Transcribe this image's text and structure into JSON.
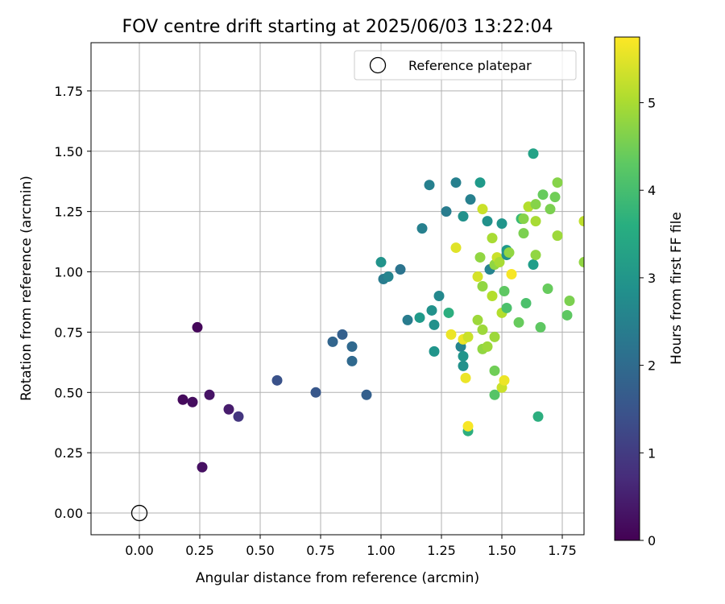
{
  "chart_data": {
    "type": "scatter",
    "title": "FOV centre drift starting at 2025/06/03 13:22:04",
    "xlabel": "Angular distance from reference (arcmin)",
    "ylabel": "Rotation from reference (arcmin)",
    "xlim": [
      -0.2,
      1.84
    ],
    "ylim": [
      -0.09,
      1.95
    ],
    "xticks": [
      "0.00",
      "0.25",
      "0.50",
      "0.75",
      "1.00",
      "1.25",
      "1.50",
      "1.75"
    ],
    "yticks": [
      "0.00",
      "0.25",
      "0.50",
      "0.75",
      "1.00",
      "1.25",
      "1.50",
      "1.75"
    ],
    "grid": true,
    "legend": {
      "position": "top-right",
      "entries": [
        "Reference platepar"
      ]
    },
    "reference": {
      "x": 0.0,
      "y": 0.0,
      "marker": "open-circle"
    },
    "colorbar": {
      "label": "Hours from first FF file",
      "colormap": "viridis",
      "range": [
        0,
        5.75
      ],
      "ticks": [
        "0",
        "1",
        "2",
        "3",
        "4",
        "5"
      ]
    },
    "points": [
      {
        "x": 0.24,
        "y": 0.77,
        "h": 0.1
      },
      {
        "x": 0.18,
        "y": 0.47,
        "h": 0.15
      },
      {
        "x": 0.22,
        "y": 0.46,
        "h": 0.2
      },
      {
        "x": 0.26,
        "y": 0.19,
        "h": 0.25
      },
      {
        "x": 0.29,
        "y": 0.49,
        "h": 0.3
      },
      {
        "x": 0.37,
        "y": 0.43,
        "h": 0.45
      },
      {
        "x": 0.41,
        "y": 0.4,
        "h": 0.9
      },
      {
        "x": 0.57,
        "y": 0.55,
        "h": 1.45
      },
      {
        "x": 0.73,
        "y": 0.5,
        "h": 1.55
      },
      {
        "x": 0.8,
        "y": 0.71,
        "h": 1.85
      },
      {
        "x": 0.84,
        "y": 0.74,
        "h": 1.75
      },
      {
        "x": 0.88,
        "y": 0.69,
        "h": 1.95
      },
      {
        "x": 0.88,
        "y": 0.63,
        "h": 1.95
      },
      {
        "x": 0.94,
        "y": 0.49,
        "h": 1.75
      },
      {
        "x": 1.0,
        "y": 1.04,
        "h": 2.95
      },
      {
        "x": 1.01,
        "y": 0.97,
        "h": 2.4
      },
      {
        "x": 1.03,
        "y": 0.98,
        "h": 2.6
      },
      {
        "x": 1.08,
        "y": 1.01,
        "h": 2.2
      },
      {
        "x": 1.11,
        "y": 0.8,
        "h": 2.4
      },
      {
        "x": 1.16,
        "y": 0.81,
        "h": 3.1
      },
      {
        "x": 1.17,
        "y": 1.18,
        "h": 2.5
      },
      {
        "x": 1.2,
        "y": 1.36,
        "h": 2.5
      },
      {
        "x": 1.21,
        "y": 0.84,
        "h": 2.9
      },
      {
        "x": 1.22,
        "y": 0.67,
        "h": 3.0
      },
      {
        "x": 1.22,
        "y": 0.78,
        "h": 2.9
      },
      {
        "x": 1.24,
        "y": 0.9,
        "h": 2.7
      },
      {
        "x": 1.27,
        "y": 1.25,
        "h": 2.4
      },
      {
        "x": 1.28,
        "y": 0.83,
        "h": 3.6
      },
      {
        "x": 1.29,
        "y": 0.74,
        "h": 5.6
      },
      {
        "x": 1.31,
        "y": 1.37,
        "h": 2.5
      },
      {
        "x": 1.31,
        "y": 1.1,
        "h": 5.5
      },
      {
        "x": 1.33,
        "y": 0.69,
        "h": 2.6
      },
      {
        "x": 1.34,
        "y": 0.65,
        "h": 3.0
      },
      {
        "x": 1.34,
        "y": 0.61,
        "h": 2.9
      },
      {
        "x": 1.34,
        "y": 1.23,
        "h": 2.9
      },
      {
        "x": 1.34,
        "y": 0.72,
        "h": 5.6
      },
      {
        "x": 1.35,
        "y": 0.56,
        "h": 5.6
      },
      {
        "x": 1.36,
        "y": 0.73,
        "h": 5.3
      },
      {
        "x": 1.36,
        "y": 0.34,
        "h": 3.6
      },
      {
        "x": 1.36,
        "y": 0.36,
        "h": 5.7
      },
      {
        "x": 1.37,
        "y": 1.3,
        "h": 2.5
      },
      {
        "x": 1.4,
        "y": 0.98,
        "h": 5.4
      },
      {
        "x": 1.4,
        "y": 0.8,
        "h": 4.9
      },
      {
        "x": 1.41,
        "y": 1.37,
        "h": 3.1
      },
      {
        "x": 1.41,
        "y": 1.06,
        "h": 4.8
      },
      {
        "x": 1.42,
        "y": 0.94,
        "h": 4.8
      },
      {
        "x": 1.42,
        "y": 0.76,
        "h": 4.9
      },
      {
        "x": 1.42,
        "y": 0.68,
        "h": 4.8
      },
      {
        "x": 1.42,
        "y": 1.26,
        "h": 5.3
      },
      {
        "x": 1.44,
        "y": 1.21,
        "h": 2.9
      },
      {
        "x": 1.44,
        "y": 0.69,
        "h": 4.9
      },
      {
        "x": 1.45,
        "y": 1.01,
        "h": 2.6
      },
      {
        "x": 1.46,
        "y": 1.14,
        "h": 5.0
      },
      {
        "x": 1.46,
        "y": 0.9,
        "h": 5.1
      },
      {
        "x": 1.47,
        "y": 1.03,
        "h": 4.8
      },
      {
        "x": 1.47,
        "y": 0.73,
        "h": 4.9
      },
      {
        "x": 1.47,
        "y": 0.59,
        "h": 4.5
      },
      {
        "x": 1.47,
        "y": 0.49,
        "h": 4.2
      },
      {
        "x": 1.48,
        "y": 1.06,
        "h": 5.3
      },
      {
        "x": 1.49,
        "y": 1.04,
        "h": 5.0
      },
      {
        "x": 1.5,
        "y": 1.2,
        "h": 3.0
      },
      {
        "x": 1.5,
        "y": 0.52,
        "h": 5.3
      },
      {
        "x": 1.5,
        "y": 0.83,
        "h": 5.1
      },
      {
        "x": 1.51,
        "y": 0.92,
        "h": 4.3
      },
      {
        "x": 1.51,
        "y": 0.55,
        "h": 5.6
      },
      {
        "x": 1.52,
        "y": 1.09,
        "h": 3.1
      },
      {
        "x": 1.52,
        "y": 0.85,
        "h": 4.1
      },
      {
        "x": 1.52,
        "y": 1.07,
        "h": 2.9
      },
      {
        "x": 1.53,
        "y": 1.08,
        "h": 4.8
      },
      {
        "x": 1.54,
        "y": 0.99,
        "h": 5.7
      },
      {
        "x": 1.57,
        "y": 0.79,
        "h": 4.4
      },
      {
        "x": 1.58,
        "y": 1.22,
        "h": 3.9
      },
      {
        "x": 1.59,
        "y": 1.22,
        "h": 4.7
      },
      {
        "x": 1.59,
        "y": 1.16,
        "h": 4.6
      },
      {
        "x": 1.6,
        "y": 0.87,
        "h": 4.1
      },
      {
        "x": 1.61,
        "y": 1.27,
        "h": 5.1
      },
      {
        "x": 1.63,
        "y": 1.49,
        "h": 3.3
      },
      {
        "x": 1.63,
        "y": 1.03,
        "h": 3.2
      },
      {
        "x": 1.64,
        "y": 1.21,
        "h": 5.0
      },
      {
        "x": 1.64,
        "y": 1.07,
        "h": 4.8
      },
      {
        "x": 1.64,
        "y": 1.28,
        "h": 4.7
      },
      {
        "x": 1.65,
        "y": 0.4,
        "h": 3.6
      },
      {
        "x": 1.66,
        "y": 0.77,
        "h": 4.3
      },
      {
        "x": 1.67,
        "y": 1.32,
        "h": 4.4
      },
      {
        "x": 1.69,
        "y": 0.93,
        "h": 4.4
      },
      {
        "x": 1.7,
        "y": 1.26,
        "h": 4.6
      },
      {
        "x": 1.72,
        "y": 1.31,
        "h": 4.5
      },
      {
        "x": 1.73,
        "y": 1.15,
        "h": 4.9
      },
      {
        "x": 1.73,
        "y": 1.37,
        "h": 4.7
      },
      {
        "x": 1.77,
        "y": 0.82,
        "h": 4.3
      },
      {
        "x": 1.78,
        "y": 0.88,
        "h": 4.6
      },
      {
        "x": 1.84,
        "y": 1.21,
        "h": 5.2
      },
      {
        "x": 1.84,
        "y": 1.04,
        "h": 4.8
      }
    ]
  }
}
